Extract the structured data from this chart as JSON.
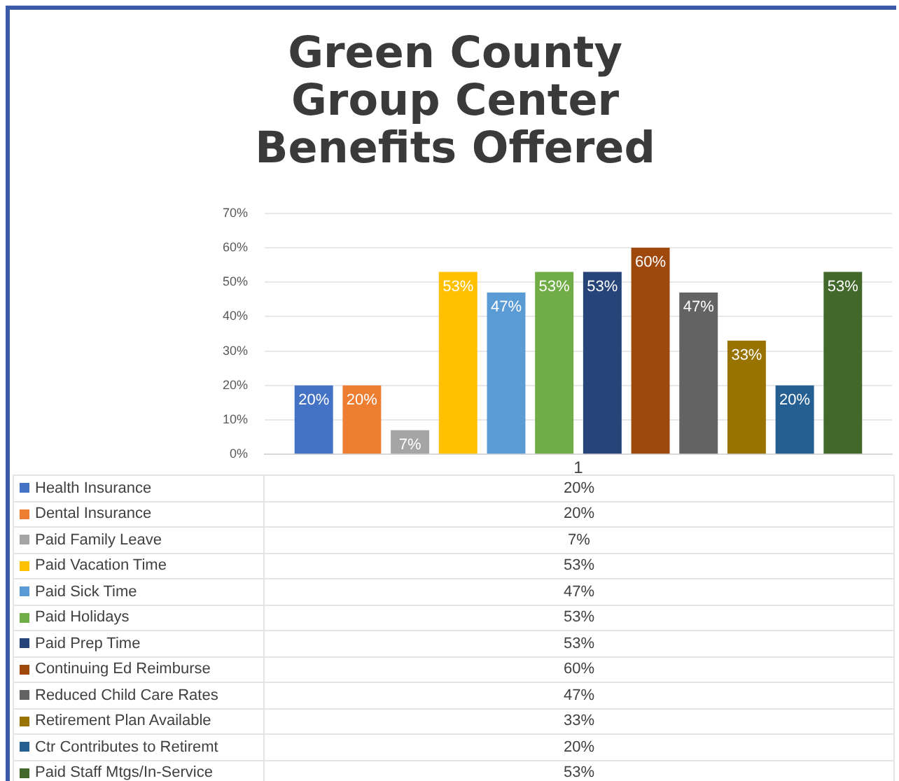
{
  "chart_data": {
    "type": "bar",
    "title": "Green County\nGroup Center\nBenefits Offered",
    "categories": [
      "1"
    ],
    "ylim": [
      0,
      70
    ],
    "yticks": [
      {
        "value": 0,
        "label": "0%"
      },
      {
        "value": 10,
        "label": "10%"
      },
      {
        "value": 20,
        "label": "20%"
      },
      {
        "value": 30,
        "label": "30%"
      },
      {
        "value": 40,
        "label": "40%"
      },
      {
        "value": 50,
        "label": "50%"
      },
      {
        "value": 60,
        "label": "60%"
      },
      {
        "value": 70,
        "label": "70%"
      }
    ],
    "grid": "y",
    "legend": "bottom",
    "series": [
      {
        "name": "Health Insurance",
        "color": "#4472c4",
        "values": [
          20
        ],
        "value_labels": [
          "20%"
        ]
      },
      {
        "name": "Dental Insurance",
        "color": "#ed7d31",
        "values": [
          20
        ],
        "value_labels": [
          "20%"
        ]
      },
      {
        "name": "Paid Family Leave",
        "color": "#a5a5a5",
        "values": [
          7
        ],
        "value_labels": [
          "7%"
        ]
      },
      {
        "name": "Paid Vacation Time",
        "color": "#ffc000",
        "values": [
          53
        ],
        "value_labels": [
          "53%"
        ]
      },
      {
        "name": "Paid Sick Time",
        "color": "#5b9bd5",
        "values": [
          47
        ],
        "value_labels": [
          "47%"
        ]
      },
      {
        "name": "Paid Holidays",
        "color": "#70ad47",
        "values": [
          53
        ],
        "value_labels": [
          "53%"
        ]
      },
      {
        "name": "Paid Prep Time",
        "color": "#264478",
        "values": [
          53
        ],
        "value_labels": [
          "53%"
        ]
      },
      {
        "name": "Continuing Ed Reimburse",
        "color": "#9e480e",
        "values": [
          60
        ],
        "value_labels": [
          "60%"
        ]
      },
      {
        "name": "Reduced Child Care Rates",
        "color": "#636363",
        "values": [
          47
        ],
        "value_labels": [
          "47%"
        ]
      },
      {
        "name": "Retirement Plan Available",
        "color": "#997300",
        "values": [
          33
        ],
        "value_labels": [
          "33%"
        ]
      },
      {
        "name": "Ctr Contributes to Retiremt",
        "color": "#255e91",
        "values": [
          20
        ],
        "value_labels": [
          "20%"
        ]
      },
      {
        "name": "Paid Staff Mtgs/In-Service",
        "color": "#43682b",
        "values": [
          53
        ],
        "value_labels": [
          "53%"
        ]
      }
    ]
  }
}
